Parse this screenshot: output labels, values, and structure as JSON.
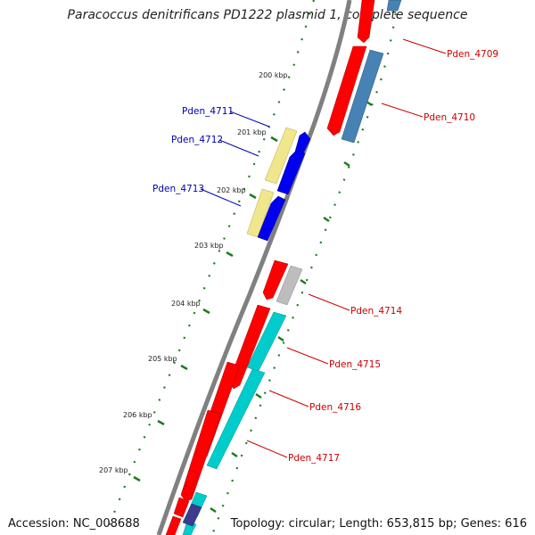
{
  "title": "Paracoccus denitrificans PD1222 plasmid 1, complete sequence",
  "footer": {
    "accession": "Accession: NC_008688",
    "summary": "Topology: circular; Length: 653,815 bp; Genes: 616"
  },
  "ticks": [
    "200 kbp",
    "201 kbp",
    "202 kbp",
    "203 kbp",
    "204 kbp",
    "205 kbp",
    "206 kbp",
    "207 kbp"
  ],
  "genes_forward": [
    "Pden_4709",
    "Pden_4710",
    "Pden_4714",
    "Pden_4715",
    "Pden_4716",
    "Pden_4717"
  ],
  "genes_reverse": [
    "Pden_4711",
    "Pden_4712",
    "Pden_4713"
  ],
  "colors": {
    "cds_red": "#ff0000",
    "steel_blue": "#4682b4",
    "cyan": "#00cccc",
    "pale_yellow": "#f0e68c",
    "blue": "#0000ee",
    "gray": "#bdbdbd",
    "dark_blue": "#3b3b8f",
    "tick_green": "#1e7a1e",
    "backbone": "#808080"
  }
}
